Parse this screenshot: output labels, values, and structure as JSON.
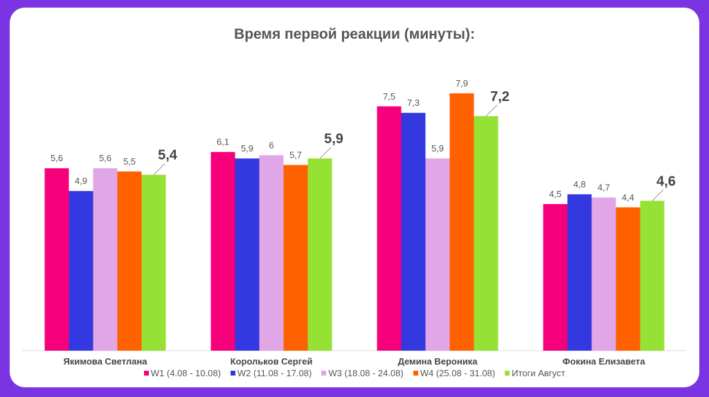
{
  "chart_data": {
    "type": "bar",
    "title": "Время первой реакции (минуты):",
    "categories": [
      "Якимова Светлана",
      "Корольков Сергей",
      "Демина Вероника",
      "Фокина Елизавета"
    ],
    "series": [
      {
        "name": "W1 (4.08 - 10.08)",
        "color": "#f5007a",
        "values": [
          5.6,
          6.1,
          7.5,
          4.5
        ],
        "labels": [
          "5,6",
          "6,1",
          "7,5",
          "4,5"
        ]
      },
      {
        "name": "W2 (11.08 - 17.08)",
        "color": "#3438e0",
        "values": [
          4.9,
          5.9,
          7.3,
          4.8
        ],
        "labels": [
          "4,9",
          "5,9",
          "7,3",
          "4,8"
        ]
      },
      {
        "name": "W3 (18.08 - 24.08)",
        "color": "#e0a6e6",
        "values": [
          5.6,
          6,
          5.9,
          4.7
        ],
        "labels": [
          "5,6",
          "6",
          "5,9",
          "4,7"
        ]
      },
      {
        "name": "W4 (25.08 - 31.08)",
        "color": "#ff6000",
        "values": [
          5.5,
          5.7,
          7.9,
          4.4
        ],
        "labels": [
          "5,5",
          "5,7",
          "7,9",
          "4,4"
        ]
      },
      {
        "name": "Итоги Август",
        "color": "#96e234",
        "values": [
          5.4,
          5.9,
          7.2,
          4.6
        ],
        "labels": [
          "5,4",
          "5,9",
          "7,2",
          "4,6"
        ]
      }
    ],
    "ylim": [
      0,
      8.5
    ],
    "grid": false,
    "legend_position": "bottom"
  }
}
